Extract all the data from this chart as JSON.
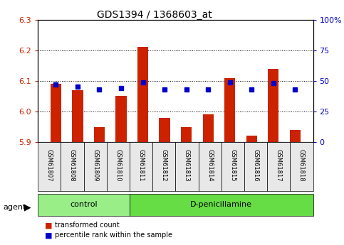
{
  "title": "GDS1394 / 1368603_at",
  "samples": [
    "GSM61807",
    "GSM61808",
    "GSM61809",
    "GSM61810",
    "GSM61811",
    "GSM61812",
    "GSM61813",
    "GSM61814",
    "GSM61815",
    "GSM61816",
    "GSM61817",
    "GSM61818"
  ],
  "transformed_count": [
    6.09,
    6.07,
    5.95,
    6.05,
    6.21,
    5.98,
    5.95,
    5.99,
    6.11,
    5.92,
    6.14,
    5.94
  ],
  "percentile_rank": [
    47,
    45,
    43,
    44,
    49,
    43,
    43,
    43,
    49,
    43,
    48,
    43
  ],
  "bar_bottom": 5.9,
  "ylim_left": [
    5.9,
    6.3
  ],
  "ylim_right": [
    0,
    100
  ],
  "yticks_left": [
    5.9,
    6.0,
    6.1,
    6.2,
    6.3
  ],
  "yticks_right": [
    0,
    25,
    50,
    75,
    100
  ],
  "ytick_labels_right": [
    "0",
    "25",
    "50",
    "75",
    "100%"
  ],
  "grid_values": [
    6.0,
    6.1,
    6.2
  ],
  "bar_color": "#cc2200",
  "dot_color": "#0000cc",
  "groups": [
    {
      "label": "control",
      "start": 0,
      "end": 4,
      "color": "#99ee88"
    },
    {
      "label": "D-penicillamine",
      "start": 4,
      "end": 12,
      "color": "#66dd44"
    }
  ],
  "agent_label": "agent",
  "xlabel_rotation": -90,
  "bar_width": 0.5,
  "tick_label_color_left": "#cc2200",
  "tick_label_color_right": "#0000cc",
  "bg_color": "#ffffff",
  "plot_bg_color": "#ffffff",
  "legend_items": [
    {
      "label": "transformed count",
      "color": "#cc2200",
      "marker": "s"
    },
    {
      "label": "percentile rank within the sample",
      "color": "#0000cc",
      "marker": "s"
    }
  ]
}
